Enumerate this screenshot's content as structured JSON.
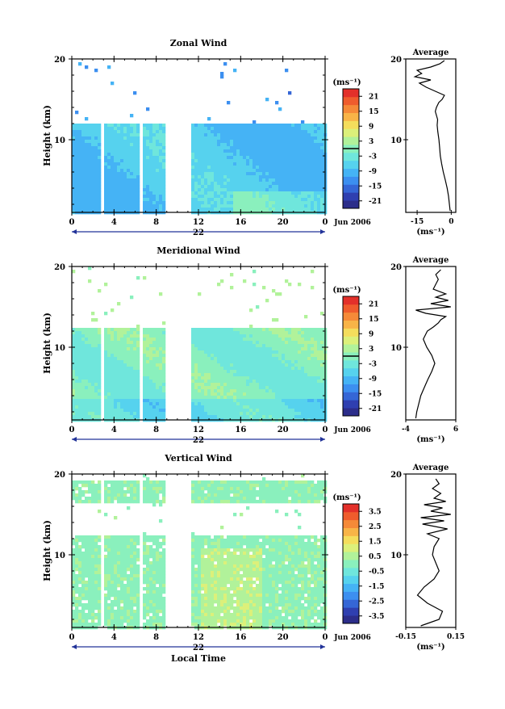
{
  "figure": {
    "xlabel": "Local Time",
    "date_label": "Jun 2006",
    "ylabel": "Height (km)",
    "unit_label": "(ms⁻¹)",
    "avg_title": "Average",
    "avg_unit": "(ms⁻¹)"
  },
  "colormap": [
    "#2c2d8a",
    "#2f3fb0",
    "#3566d6",
    "#3c8ff0",
    "#45b3f5",
    "#56d2ee",
    "#6fe6dc",
    "#8af0bd",
    "#b1f29a",
    "#dcf07a",
    "#f4dd5c",
    "#f8b447",
    "#f58a38",
    "#ef5c2d",
    "#e3302a"
  ],
  "chart_data": [
    {
      "type": "heatmap",
      "title": "Zonal Wind",
      "x_ticks": [
        "0",
        "4",
        "8",
        "12",
        "16",
        "20",
        "0"
      ],
      "day_label": "22",
      "y_ticks": [
        "20",
        "10"
      ],
      "ylim": [
        1,
        20
      ],
      "colorbar_ticks": [
        "21",
        "15",
        "9",
        "3",
        "-3",
        "-9",
        "-15",
        "-21"
      ],
      "colorbar_range": [
        -24,
        24
      ],
      "zero_line": 0,
      "average": {
        "xlim": [
          -20,
          2
        ],
        "x_ticks": [
          "-15",
          "0"
        ],
        "y_ticks": [
          "20",
          "10"
        ],
        "profile": [
          [
            -0.5,
            1.2
          ],
          [
            -0.8,
            2
          ],
          [
            -1.2,
            3
          ],
          [
            -1.8,
            4
          ],
          [
            -2.6,
            5
          ],
          [
            -3.5,
            6
          ],
          [
            -4.2,
            7
          ],
          [
            -4.8,
            8
          ],
          [
            -5.1,
            9
          ],
          [
            -5.4,
            10
          ],
          [
            -5.9,
            11
          ],
          [
            -6.2,
            11.8
          ],
          [
            -6.0,
            12.5
          ],
          [
            -7.0,
            13.5
          ],
          [
            -6.5,
            14
          ],
          [
            -5.5,
            14.6
          ],
          [
            -4.0,
            15.0
          ],
          [
            -3.0,
            15.5
          ],
          [
            -7.0,
            16
          ],
          [
            -11.0,
            16.5
          ],
          [
            -14.0,
            17
          ],
          [
            -9.0,
            17.4
          ],
          [
            -16.0,
            17.8
          ],
          [
            -13.0,
            18.2
          ],
          [
            -15.0,
            18.6
          ],
          [
            -9.0,
            19.0
          ],
          [
            -5.0,
            19.4
          ],
          [
            -3.0,
            19.8
          ]
        ]
      }
    },
    {
      "type": "heatmap",
      "title": "Meridional Wind",
      "x_ticks": [
        "0",
        "4",
        "8",
        "12",
        "16",
        "20",
        "0"
      ],
      "day_label": "22",
      "y_ticks": [
        "20",
        "10"
      ],
      "ylim": [
        1,
        20
      ],
      "colorbar_ticks": [
        "21",
        "15",
        "9",
        "3",
        "-3",
        "-9",
        "-15",
        "-21"
      ],
      "colorbar_range": [
        -24,
        24
      ],
      "zero_line": 0,
      "average": {
        "xlim": [
          -4,
          6
        ],
        "x_ticks": [
          "-4",
          "6"
        ],
        "y_ticks": [
          "20",
          "10"
        ],
        "profile": [
          [
            -2.0,
            1.2
          ],
          [
            -1.8,
            2
          ],
          [
            -1.4,
            3
          ],
          [
            -1.0,
            4
          ],
          [
            -0.3,
            5
          ],
          [
            0.4,
            6
          ],
          [
            1.2,
            7
          ],
          [
            1.8,
            8
          ],
          [
            1.2,
            9
          ],
          [
            0.2,
            10
          ],
          [
            -0.5,
            11
          ],
          [
            0.3,
            12
          ],
          [
            1.5,
            12.5
          ],
          [
            2.5,
            13.0
          ],
          [
            3.0,
            13.4
          ],
          [
            4.0,
            13.8
          ],
          [
            0.0,
            14.2
          ],
          [
            -2.0,
            14.6
          ],
          [
            5.0,
            15.0
          ],
          [
            1.0,
            15.4
          ],
          [
            4.5,
            15.8
          ],
          [
            2.0,
            16.2
          ],
          [
            4.0,
            16.6
          ],
          [
            1.5,
            17.2
          ],
          [
            2.0,
            17.8
          ],
          [
            2.5,
            18.4
          ],
          [
            2.0,
            19.0
          ],
          [
            3.0,
            19.6
          ]
        ]
      }
    },
    {
      "type": "heatmap",
      "title": "Vertical Wind",
      "x_ticks": [
        "0",
        "4",
        "8",
        "12",
        "16",
        "20",
        "0"
      ],
      "day_label": "22",
      "y_ticks": [
        "20",
        "10"
      ],
      "ylim": [
        1,
        20
      ],
      "colorbar_ticks": [
        "3.5",
        "2.5",
        "1.5",
        "0.5",
        "-0.5",
        "-1.5",
        "-2.5",
        "-3.5"
      ],
      "colorbar_range": [
        -4,
        4
      ],
      "zero_line": null,
      "average": {
        "xlim": [
          -0.15,
          0.15
        ],
        "x_ticks": [
          "-0.15",
          "0.15"
        ],
        "y_ticks": [
          "20",
          "10"
        ],
        "profile": [
          [
            -0.06,
            1.2
          ],
          [
            0.05,
            2
          ],
          [
            0.07,
            3
          ],
          [
            -0.02,
            4
          ],
          [
            -0.08,
            5
          ],
          [
            -0.04,
            6
          ],
          [
            0.02,
            7
          ],
          [
            0.05,
            8
          ],
          [
            0.03,
            9
          ],
          [
            0.01,
            10
          ],
          [
            0.02,
            11
          ],
          [
            0.05,
            12
          ],
          [
            -0.02,
            12.6
          ],
          [
            0.1,
            13.2
          ],
          [
            -0.05,
            13.8
          ],
          [
            0.08,
            14.2
          ],
          [
            -0.06,
            14.6
          ],
          [
            0.12,
            15.0
          ],
          [
            0.0,
            15.4
          ],
          [
            0.07,
            15.8
          ],
          [
            -0.04,
            16.2
          ],
          [
            0.09,
            16.6
          ],
          [
            0.02,
            17.0
          ],
          [
            0.06,
            17.6
          ],
          [
            0.01,
            18.2
          ],
          [
            0.05,
            18.8
          ],
          [
            0.03,
            19.4
          ]
        ]
      }
    }
  ]
}
